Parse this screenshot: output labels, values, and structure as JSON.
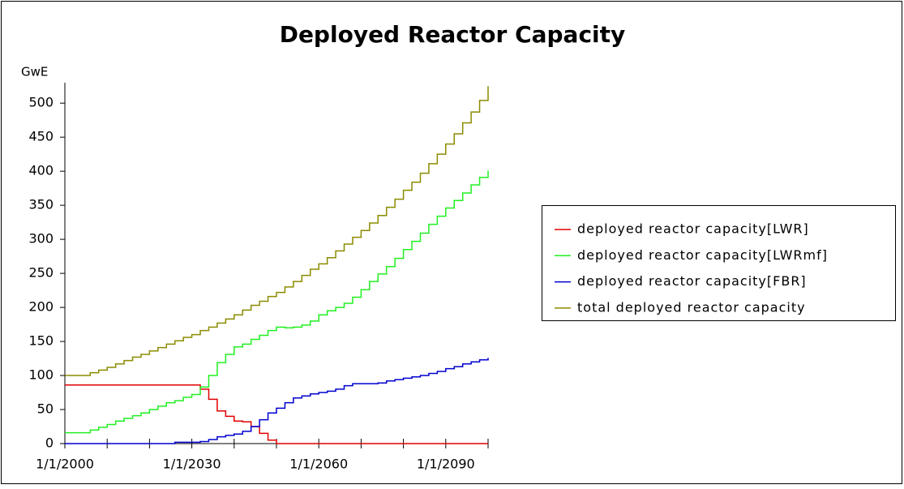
{
  "chart_data": {
    "type": "line",
    "title": "Deployed Reactor Capacity",
    "y_label": "GwE",
    "step": true,
    "x": [
      2000,
      2002,
      2004,
      2006,
      2008,
      2010,
      2012,
      2014,
      2016,
      2018,
      2020,
      2022,
      2024,
      2026,
      2028,
      2030,
      2032,
      2034,
      2036,
      2038,
      2040,
      2042,
      2044,
      2046,
      2048,
      2050,
      2052,
      2054,
      2056,
      2058,
      2060,
      2062,
      2064,
      2066,
      2068,
      2070,
      2072,
      2074,
      2076,
      2078,
      2080,
      2082,
      2084,
      2086,
      2088,
      2090,
      2092,
      2094,
      2096,
      2098,
      2100
    ],
    "series": [
      {
        "name": "deployed reactor capacity[LWR]",
        "color": "#e00000",
        "values": [
          86,
          86,
          86,
          86,
          86,
          86,
          86,
          86,
          86,
          86,
          86,
          86,
          86,
          86,
          86,
          86,
          80,
          65,
          48,
          40,
          33,
          32,
          25,
          15,
          5,
          0,
          0,
          0,
          0,
          0,
          0,
          0,
          0,
          0,
          0,
          0,
          0,
          0,
          0,
          0,
          0,
          0,
          0,
          0,
          0,
          0,
          0,
          0,
          0,
          0,
          0
        ]
      },
      {
        "name": "deployed reactor capacity[LWRmf]",
        "color": "#20f020",
        "values": [
          16,
          16,
          16,
          20,
          24,
          28,
          33,
          37,
          41,
          45,
          50,
          55,
          60,
          63,
          68,
          72,
          83,
          100,
          119,
          131,
          142,
          146,
          153,
          159,
          166,
          171,
          170,
          171,
          174,
          180,
          189,
          195,
          200,
          206,
          215,
          226,
          238,
          249,
          260,
          272,
          285,
          297,
          309,
          322,
          334,
          346,
          357,
          368,
          380,
          391,
          401
        ]
      },
      {
        "name": "deployed reactor capacity[FBR]",
        "color": "#0000d0",
        "values": [
          0,
          0,
          0,
          0,
          0,
          0,
          0,
          0,
          0,
          0,
          0,
          0,
          0,
          2,
          2,
          2,
          3,
          6,
          10,
          12,
          14,
          18,
          25,
          35,
          45,
          52,
          60,
          67,
          70,
          73,
          75,
          77,
          80,
          85,
          88,
          88,
          88,
          89,
          92,
          94,
          96,
          98,
          100,
          103,
          106,
          110,
          113,
          117,
          120,
          123,
          126
        ]
      },
      {
        "name": "total deployed reactor capacity",
        "color": "#8b8b00",
        "values": [
          100,
          100,
          100,
          104,
          108,
          112,
          117,
          122,
          127,
          131,
          136,
          141,
          146,
          151,
          156,
          160,
          166,
          171,
          177,
          183,
          189,
          196,
          203,
          209,
          216,
          222,
          230,
          238,
          247,
          256,
          264,
          273,
          283,
          293,
          303,
          313,
          324,
          335,
          347,
          359,
          372,
          384,
          397,
          411,
          425,
          440,
          455,
          471,
          487,
          504,
          525
        ]
      }
    ],
    "xlim": [
      2000,
      2100
    ],
    "xticks": [
      {
        "value": 2000,
        "label": "1/1/2000"
      },
      {
        "value": 2030,
        "label": "1/1/2030"
      },
      {
        "value": 2060,
        "label": "1/1/2060"
      },
      {
        "value": 2090,
        "label": "1/1/2090"
      }
    ],
    "xminorticks": [
      2010,
      2020,
      2040,
      2050,
      2070,
      2080,
      2100
    ],
    "ylim": [
      0,
      530
    ],
    "yticks": [
      0,
      50,
      100,
      150,
      200,
      250,
      300,
      350,
      400,
      450,
      500
    ],
    "legend": "right"
  }
}
